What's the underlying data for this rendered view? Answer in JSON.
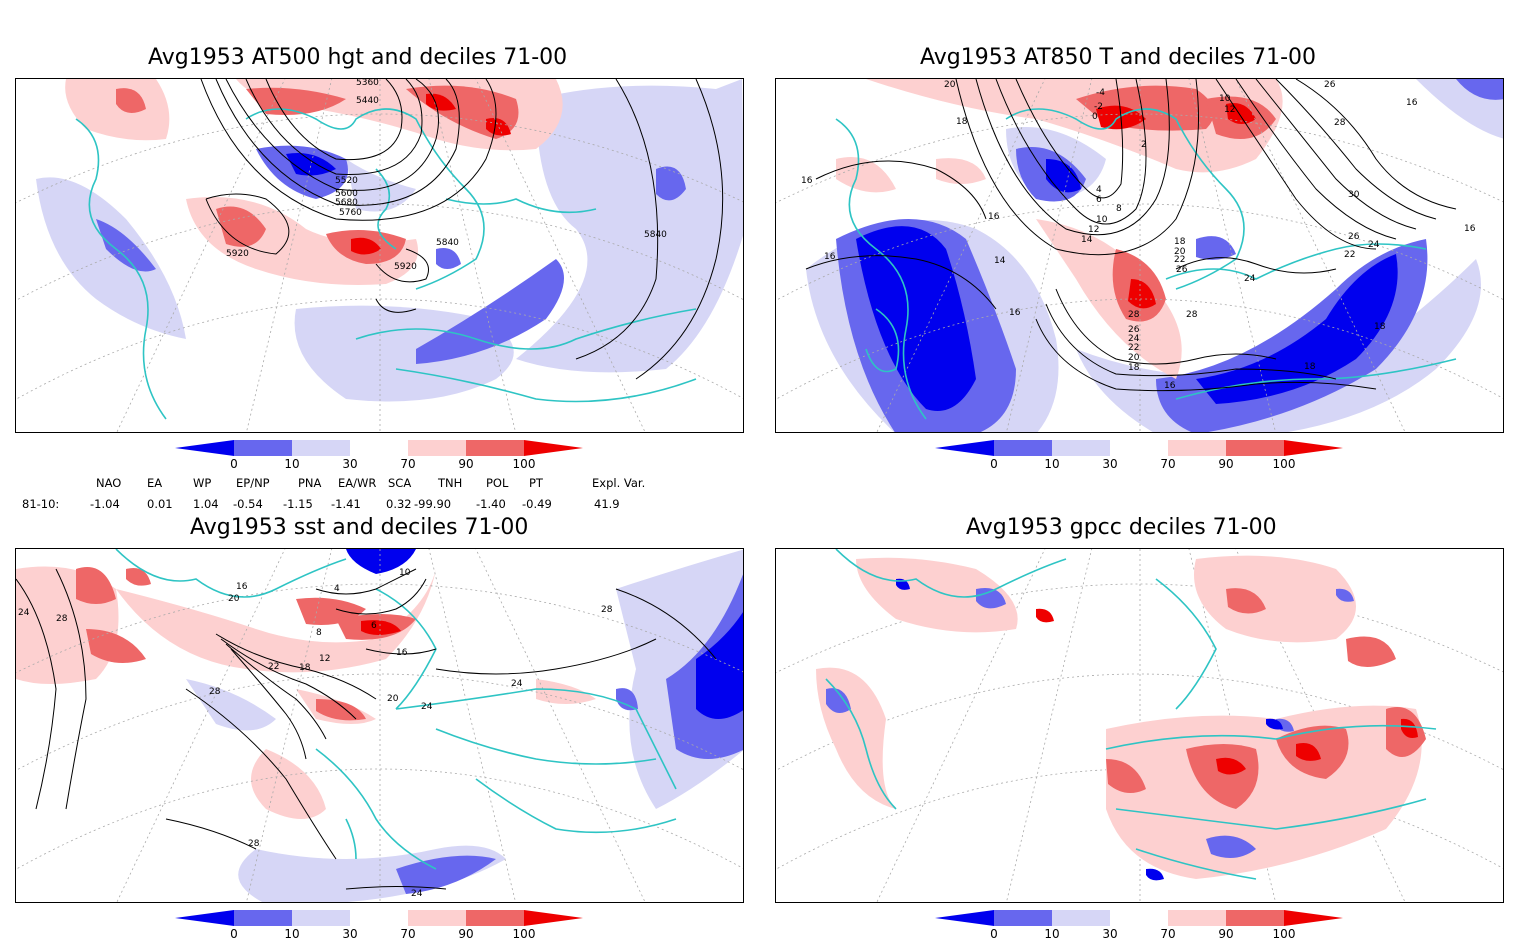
{
  "panels": [
    {
      "title": "Avg1953 AT500 hgt and deciles 71-00",
      "contour_labels": [
        "5360",
        "5440",
        "5520",
        "5600",
        "5680",
        "5760",
        "5840",
        "5920",
        "5840",
        "5920",
        "5840"
      ]
    },
    {
      "title": "Avg1953 AT850 T and deciles 71-00",
      "contour_labels": [
        "20",
        "18",
        "-4",
        "-2",
        "0",
        "10",
        "12",
        "26",
        "28",
        "16",
        "2",
        "4",
        "6",
        "8",
        "10",
        "12",
        "14",
        "16",
        "16",
        "16",
        "14",
        "16",
        "18",
        "20",
        "22",
        "26",
        "24",
        "28",
        "28",
        "26",
        "24",
        "22",
        "20",
        "18",
        "16",
        "18",
        "30",
        "26",
        "24",
        "22",
        "16",
        "18"
      ]
    },
    {
      "title": "Avg1953 sst and deciles 71-00",
      "contour_labels": [
        "24",
        "28",
        "20",
        "16",
        "4",
        "6",
        "8",
        "10",
        "12",
        "16",
        "18",
        "20",
        "22",
        "24",
        "28",
        "24",
        "28",
        "28",
        "24"
      ]
    },
    {
      "title": "Avg1953 gpcc deciles 71-00",
      "contour_labels": []
    }
  ],
  "colorbar": {
    "ticks": [
      "0",
      "10",
      "30",
      "70",
      "90",
      "100"
    ],
    "colors": {
      "lt0": "#0000ee",
      "p0_10": "#6767ee",
      "p10_30": "#d6d6f6",
      "p30_70": "#ffffff",
      "p70_90": "#fdd0d0",
      "p90_100": "#ee6767",
      "gt100": "#ee0000"
    }
  },
  "indices": {
    "headers": [
      "NAO",
      "EA",
      "WP",
      "EP/NP",
      "PNA",
      "EA/WR",
      "SCA",
      "TNH",
      "POL",
      "PT",
      "Expl. Var."
    ],
    "row_label": "81-10:",
    "values": [
      "-1.04",
      "0.01",
      "1.04",
      "-0.54",
      "-1.15",
      "-1.41",
      "0.32",
      "-99.90",
      "-1.40",
      "-0.49",
      "41.9"
    ]
  },
  "map_colors": {
    "coast": "#2ec4c4",
    "grid": "#aaaaaa",
    "contour": "#000000"
  }
}
